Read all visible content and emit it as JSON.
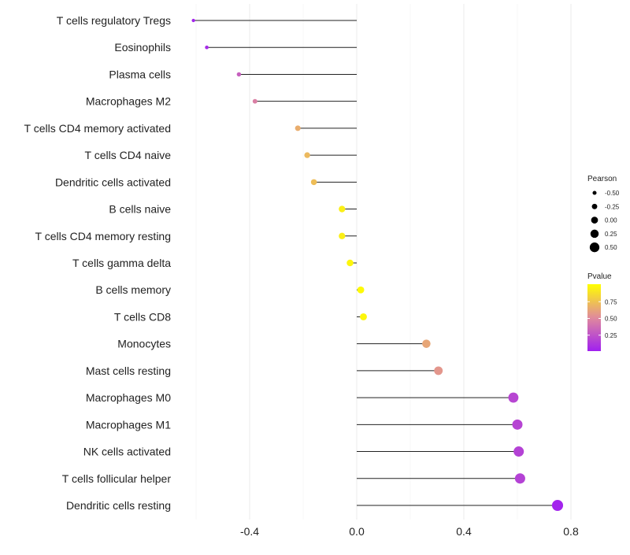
{
  "chart_data": {
    "type": "lollipop",
    "title": "",
    "xlabel": "",
    "ylabel": "",
    "xlim": [
      -0.6,
      0.8
    ],
    "x_ticks": [
      -0.4,
      0.0,
      0.4,
      0.8
    ],
    "x_tick_labels": [
      "-0.4",
      "0.0",
      "0.4",
      "0.8"
    ],
    "grid": true,
    "baseline": 0.0,
    "categories": [
      "T cells regulatory  Tregs",
      "Eosinophils",
      "Plasma cells",
      "Macrophages M2",
      "T cells CD4 memory activated",
      "T cells CD4 naive",
      "Dendritic cells activated",
      "B cells naive",
      "T cells CD4 memory resting",
      "T cells gamma delta",
      "B cells memory",
      "T cells CD8",
      "Monocytes",
      "Mast cells resting",
      "Macrophages M0",
      "Macrophages M1",
      "NK cells activated",
      "T cells follicular helper",
      "Dendritic cells resting"
    ],
    "values": [
      -0.61,
      -0.56,
      -0.44,
      -0.38,
      -0.22,
      -0.185,
      -0.16,
      -0.055,
      -0.055,
      -0.025,
      0.015,
      0.025,
      0.26,
      0.305,
      0.585,
      0.6,
      0.605,
      0.61,
      0.75
    ],
    "pvalues": [
      0.02,
      0.05,
      0.3,
      0.45,
      0.65,
      0.7,
      0.72,
      0.93,
      0.93,
      0.96,
      0.98,
      0.96,
      0.62,
      0.55,
      0.18,
      0.17,
      0.16,
      0.16,
      0.02
    ],
    "legend": {
      "position": "right",
      "size_title": "Pearson",
      "size_values": [
        -0.5,
        -0.25,
        0.0,
        0.25,
        0.5
      ],
      "size_labels": [
        "-0.50",
        "-0.25",
        "0.00",
        "0.25",
        "0.50"
      ],
      "color_title": "Pvalue",
      "color_values": [
        0.25,
        0.5,
        0.75
      ],
      "color_labels": [
        "0.25",
        "0.50",
        "0.75"
      ],
      "color_range": [
        0.0,
        1.0
      ],
      "color_low": "#a020f0",
      "color_mid": "#e08a9c",
      "color_high": "#ffff00"
    }
  }
}
